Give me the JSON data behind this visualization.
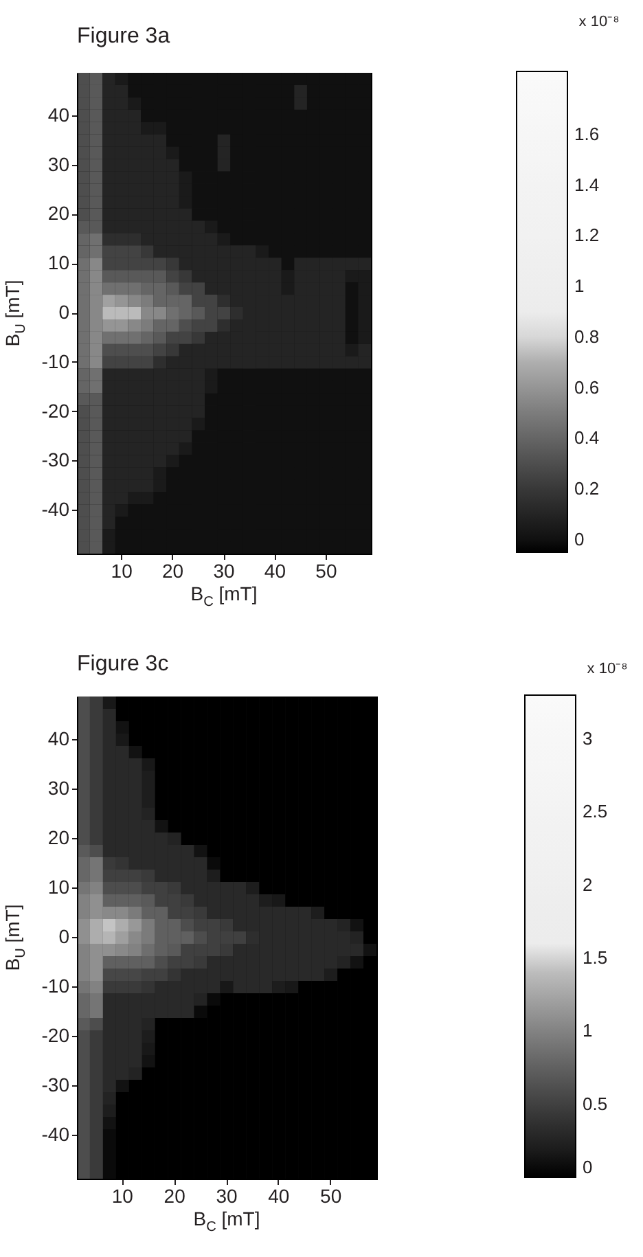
{
  "chart_data": [
    {
      "type": "heatmap",
      "title": "Figure 3a",
      "xlabel": "B$_{C}$ [mT]",
      "ylabel": "B$_{U}$ [mT]",
      "clabel": "x 10⁻⁸",
      "categories": [
        null,
        null,
        null,
        "10",
        null,
        null,
        null,
        "20",
        null,
        null,
        null,
        "30",
        null,
        null,
        null,
        "40",
        null,
        null,
        null,
        "50",
        null,
        null,
        null
      ],
      "y_categories": [
        null,
        null,
        null,
        "40",
        null,
        null,
        null,
        "30",
        null,
        null,
        null,
        "20",
        null,
        null,
        null,
        "10",
        null,
        null,
        null,
        "0",
        null,
        null,
        null,
        "-10",
        null,
        null,
        null,
        "-20",
        null,
        null,
        null,
        "-30",
        null,
        null,
        null,
        "-40",
        null,
        null,
        null
      ],
      "cells": [
        [
          0.3,
          0.35,
          0.1,
          0.05,
          0,
          0,
          0,
          0,
          0,
          0,
          0,
          0,
          0,
          0,
          0,
          0,
          0,
          0,
          0,
          0,
          0,
          0,
          0
        ],
        [
          0.3,
          0.35,
          0.1,
          0.1,
          0,
          0,
          0,
          0,
          0,
          0,
          0,
          0,
          0,
          0,
          0,
          0,
          0,
          0.1,
          0,
          0,
          0,
          0,
          0
        ],
        [
          0.3,
          0.35,
          0.1,
          0.1,
          0.05,
          0,
          0,
          0,
          0,
          0,
          0,
          0,
          0,
          0,
          0,
          0,
          0,
          0.1,
          0,
          0,
          0,
          0,
          0
        ],
        [
          0.3,
          0.35,
          0.1,
          0.1,
          0.1,
          0,
          0,
          0,
          0,
          0,
          0,
          0,
          0,
          0,
          0,
          0,
          0,
          0,
          0,
          0,
          0,
          0,
          0
        ],
        [
          0.3,
          0.35,
          0.1,
          0.1,
          0.1,
          0.05,
          0.05,
          0,
          0,
          0,
          0,
          0,
          0,
          0,
          0,
          0,
          0,
          0,
          0,
          0,
          0,
          0,
          0
        ],
        [
          0.3,
          0.35,
          0.1,
          0.1,
          0.1,
          0.1,
          0.1,
          0,
          0,
          0,
          0,
          0.1,
          0,
          0,
          0,
          0,
          0,
          0,
          0,
          0,
          0,
          0,
          0
        ],
        [
          0.3,
          0.35,
          0.1,
          0.1,
          0.1,
          0.1,
          0.1,
          0.05,
          0,
          0,
          0,
          0.1,
          0,
          0,
          0,
          0,
          0,
          0,
          0,
          0,
          0,
          0,
          0
        ],
        [
          0.3,
          0.35,
          0.1,
          0.1,
          0.1,
          0.1,
          0.1,
          0.1,
          0,
          0,
          0,
          0.1,
          0,
          0,
          0,
          0,
          0,
          0,
          0,
          0,
          0,
          0,
          0
        ],
        [
          0.3,
          0.35,
          0.1,
          0.1,
          0.1,
          0.1,
          0.1,
          0.1,
          0.05,
          0,
          0,
          0,
          0,
          0,
          0,
          0,
          0,
          0,
          0,
          0,
          0,
          0,
          0
        ],
        [
          0.3,
          0.35,
          0.1,
          0.1,
          0.1,
          0.1,
          0.1,
          0.1,
          0.05,
          0,
          0,
          0,
          0,
          0,
          0,
          0,
          0,
          0,
          0,
          0,
          0,
          0,
          0
        ],
        [
          0.3,
          0.35,
          0.1,
          0.1,
          0.1,
          0.1,
          0.1,
          0.1,
          0.05,
          0,
          0,
          0,
          0,
          0,
          0,
          0,
          0,
          0,
          0,
          0,
          0,
          0,
          0
        ],
        [
          0.3,
          0.35,
          0.1,
          0.1,
          0.1,
          0.1,
          0.1,
          0.1,
          0.1,
          0,
          0,
          0,
          0,
          0,
          0,
          0,
          0,
          0,
          0,
          0,
          0,
          0,
          0
        ],
        [
          0.35,
          0.35,
          0.1,
          0.1,
          0.1,
          0.1,
          0.1,
          0.1,
          0.1,
          0.1,
          0.05,
          0,
          0,
          0,
          0,
          0,
          0,
          0,
          0,
          0,
          0,
          0,
          0
        ],
        [
          0.4,
          0.45,
          0.15,
          0.15,
          0.15,
          0.1,
          0.1,
          0.1,
          0.1,
          0.1,
          0.1,
          0.05,
          0,
          0,
          0,
          0,
          0,
          0,
          0,
          0,
          0,
          0,
          0
        ],
        [
          0.4,
          0.45,
          0.25,
          0.25,
          0.25,
          0.2,
          0.1,
          0.1,
          0.1,
          0.1,
          0.1,
          0.1,
          0.1,
          0.1,
          0.05,
          0,
          0,
          0,
          0,
          0,
          0,
          0,
          0
        ],
        [
          0.45,
          0.55,
          0.25,
          0.25,
          0.25,
          0.25,
          0.25,
          0.2,
          0.1,
          0.1,
          0.1,
          0.1,
          0.1,
          0.1,
          0.1,
          0.1,
          0,
          0.1,
          0.1,
          0.1,
          0.1,
          0.1,
          0.1
        ],
        [
          0.45,
          0.55,
          0.35,
          0.35,
          0.35,
          0.35,
          0.35,
          0.25,
          0.2,
          0.1,
          0.1,
          0.1,
          0.1,
          0.1,
          0.1,
          0.1,
          0.05,
          0.1,
          0.1,
          0.1,
          0.1,
          0.05,
          0.05
        ],
        [
          0.45,
          0.55,
          0.45,
          0.45,
          0.45,
          0.4,
          0.4,
          0.35,
          0.25,
          0.25,
          0.1,
          0.1,
          0.1,
          0.1,
          0.1,
          0.1,
          0.05,
          0.1,
          0.1,
          0.1,
          0.1,
          0,
          0.05
        ],
        [
          0.45,
          0.55,
          0.65,
          0.6,
          0.55,
          0.5,
          0.4,
          0.4,
          0.4,
          0.25,
          0.25,
          0.15,
          0.1,
          0.1,
          0.1,
          0.1,
          0.1,
          0.1,
          0.1,
          0.1,
          0.1,
          0,
          0.05
        ],
        [
          0.45,
          0.55,
          0.75,
          0.75,
          0.75,
          0.55,
          0.55,
          0.45,
          0.4,
          0.35,
          0.25,
          0.25,
          0.15,
          0.1,
          0.1,
          0.1,
          0.1,
          0.1,
          0.1,
          0.1,
          0.1,
          0,
          0.05
        ],
        [
          0.45,
          0.55,
          0.6,
          0.6,
          0.55,
          0.5,
          0.4,
          0.4,
          0.3,
          0.25,
          0.25,
          0.15,
          0.1,
          0.1,
          0.1,
          0.1,
          0.1,
          0.1,
          0.1,
          0.1,
          0.1,
          0,
          0.05
        ],
        [
          0.45,
          0.55,
          0.45,
          0.45,
          0.45,
          0.4,
          0.35,
          0.25,
          0.25,
          0.2,
          0.1,
          0.1,
          0.1,
          0.1,
          0.1,
          0.1,
          0.1,
          0.1,
          0.1,
          0.1,
          0.1,
          0,
          0.05
        ],
        [
          0.45,
          0.55,
          0.3,
          0.3,
          0.3,
          0.3,
          0.25,
          0.2,
          0.1,
          0.1,
          0.1,
          0.1,
          0.1,
          0.1,
          0.1,
          0.1,
          0.1,
          0.1,
          0.1,
          0.1,
          0.1,
          0.05,
          0.1
        ],
        [
          0.45,
          0.55,
          0.25,
          0.25,
          0.25,
          0.25,
          0.15,
          0.1,
          0.1,
          0.1,
          0.1,
          0.1,
          0.1,
          0.1,
          0.1,
          0.1,
          0.1,
          0.1,
          0.1,
          0.1,
          0.1,
          0.1,
          0.1
        ],
        [
          0.4,
          0.45,
          0.1,
          0.1,
          0.1,
          0.1,
          0.1,
          0.1,
          0.1,
          0.1,
          0.05,
          0,
          0,
          0,
          0,
          0,
          0,
          0,
          0,
          0,
          0,
          0,
          0
        ],
        [
          0.4,
          0.45,
          0.1,
          0.1,
          0.1,
          0.1,
          0.1,
          0.1,
          0.1,
          0.1,
          0.05,
          0,
          0,
          0,
          0,
          0,
          0,
          0,
          0,
          0,
          0,
          0,
          0
        ],
        [
          0.35,
          0.35,
          0.1,
          0.1,
          0.1,
          0.1,
          0.1,
          0.1,
          0.1,
          0.1,
          0,
          0,
          0,
          0,
          0,
          0,
          0,
          0,
          0,
          0,
          0,
          0,
          0
        ],
        [
          0.3,
          0.35,
          0.1,
          0.1,
          0.1,
          0.1,
          0.1,
          0.1,
          0.1,
          0.1,
          0,
          0,
          0,
          0,
          0,
          0,
          0,
          0,
          0,
          0,
          0,
          0,
          0
        ],
        [
          0.3,
          0.35,
          0.1,
          0.1,
          0.1,
          0.1,
          0.1,
          0.1,
          0.1,
          0.05,
          0,
          0,
          0,
          0,
          0,
          0,
          0,
          0,
          0,
          0,
          0,
          0,
          0
        ],
        [
          0.3,
          0.35,
          0.1,
          0.1,
          0.1,
          0.1,
          0.1,
          0.1,
          0.1,
          0,
          0,
          0,
          0,
          0,
          0,
          0,
          0,
          0,
          0,
          0,
          0,
          0,
          0
        ],
        [
          0.3,
          0.35,
          0.1,
          0.1,
          0.1,
          0.1,
          0.1,
          0.1,
          0.05,
          0,
          0,
          0,
          0,
          0,
          0,
          0,
          0,
          0,
          0,
          0,
          0,
          0,
          0
        ],
        [
          0.3,
          0.35,
          0.1,
          0.1,
          0.1,
          0.1,
          0.1,
          0.05,
          0,
          0,
          0,
          0,
          0,
          0,
          0,
          0,
          0,
          0,
          0,
          0,
          0,
          0,
          0
        ],
        [
          0.3,
          0.35,
          0.1,
          0.1,
          0.1,
          0.1,
          0.05,
          0,
          0,
          0,
          0,
          0,
          0,
          0,
          0,
          0,
          0,
          0,
          0,
          0,
          0,
          0,
          0
        ],
        [
          0.3,
          0.35,
          0.1,
          0.1,
          0.1,
          0.1,
          0.05,
          0,
          0,
          0,
          0,
          0,
          0,
          0,
          0,
          0,
          0,
          0,
          0,
          0,
          0,
          0,
          0
        ],
        [
          0.3,
          0.35,
          0.1,
          0.1,
          0.05,
          0.05,
          0,
          0,
          0,
          0,
          0,
          0,
          0,
          0,
          0,
          0,
          0,
          0,
          0,
          0,
          0,
          0,
          0
        ],
        [
          0.3,
          0.35,
          0.1,
          0.05,
          0,
          0,
          0,
          0,
          0,
          0,
          0,
          0,
          0,
          0,
          0,
          0,
          0,
          0,
          0,
          0,
          0,
          0,
          0
        ],
        [
          0.3,
          0.35,
          0.1,
          0,
          0,
          0,
          0,
          0,
          0,
          0,
          0,
          0,
          0,
          0,
          0,
          0,
          0,
          0,
          0,
          0,
          0,
          0,
          0
        ],
        [
          0.3,
          0.35,
          0.05,
          0,
          0,
          0,
          0,
          0,
          0,
          0,
          0,
          0,
          0,
          0,
          0,
          0,
          0,
          0,
          0,
          0,
          0,
          0,
          0
        ],
        [
          0.3,
          0.35,
          0.05,
          0,
          0,
          0,
          0,
          0,
          0,
          0,
          0,
          0,
          0,
          0,
          0,
          0,
          0,
          0,
          0,
          0,
          0,
          0,
          0
        ]
      ],
      "clim": [
        -0.05,
        1.85
      ],
      "cticks": [
        0,
        0.2,
        0.4,
        0.6,
        0.8,
        1,
        1.2,
        1.4,
        1.6
      ]
    },
    {
      "type": "heatmap",
      "title": "Figure 3c",
      "xlabel": "B$_{C}$ [mT]",
      "ylabel": "B$_{U}$ [mT]",
      "clabel": "x 10⁻⁸",
      "categories": [
        null,
        null,
        null,
        "10",
        null,
        null,
        null,
        "20",
        null,
        null,
        null,
        "30",
        null,
        null,
        null,
        "40",
        null,
        null,
        null,
        "50",
        null,
        null,
        null
      ],
      "y_categories": [
        null,
        null,
        null,
        "40",
        null,
        null,
        null,
        "30",
        null,
        null,
        null,
        "20",
        null,
        null,
        null,
        "10",
        null,
        null,
        null,
        "0",
        null,
        null,
        null,
        "-10",
        null,
        null,
        null,
        "-20",
        null,
        null,
        null,
        "-30",
        null,
        null,
        null,
        "-40",
        null,
        null,
        null
      ],
      "cells": [
        [
          0.6,
          0.45,
          0.15,
          0,
          0,
          0,
          0,
          0,
          0,
          0,
          0,
          0,
          0,
          0,
          0,
          0,
          0,
          0,
          0,
          0,
          0,
          0,
          0
        ],
        [
          0.6,
          0.45,
          0.3,
          0,
          0,
          0,
          0,
          0,
          0,
          0,
          0,
          0,
          0,
          0,
          0,
          0,
          0,
          0,
          0,
          0,
          0,
          0,
          0
        ],
        [
          0.6,
          0.45,
          0.3,
          0.1,
          0,
          0,
          0,
          0,
          0,
          0,
          0,
          0,
          0,
          0,
          0,
          0,
          0,
          0,
          0,
          0,
          0,
          0,
          0
        ],
        [
          0.6,
          0.45,
          0.3,
          0.15,
          0,
          0,
          0,
          0,
          0,
          0,
          0,
          0,
          0,
          0,
          0,
          0,
          0,
          0,
          0,
          0,
          0,
          0,
          0
        ],
        [
          0.6,
          0.45,
          0.3,
          0.3,
          0.1,
          0,
          0,
          0,
          0,
          0,
          0,
          0,
          0,
          0,
          0,
          0,
          0,
          0,
          0,
          0,
          0,
          0,
          0
        ],
        [
          0.6,
          0.45,
          0.3,
          0.3,
          0.3,
          0.15,
          0,
          0,
          0,
          0,
          0,
          0,
          0,
          0,
          0,
          0,
          0,
          0,
          0,
          0,
          0,
          0,
          0
        ],
        [
          0.6,
          0.45,
          0.3,
          0.3,
          0.3,
          0.2,
          0,
          0,
          0,
          0,
          0,
          0,
          0,
          0,
          0,
          0,
          0,
          0,
          0,
          0,
          0,
          0,
          0
        ],
        [
          0.6,
          0.45,
          0.3,
          0.3,
          0.3,
          0.2,
          0,
          0,
          0,
          0,
          0,
          0,
          0,
          0,
          0,
          0,
          0,
          0,
          0,
          0,
          0,
          0,
          0
        ],
        [
          0.6,
          0.45,
          0.3,
          0.3,
          0.3,
          0.2,
          0,
          0,
          0,
          0,
          0,
          0,
          0,
          0,
          0,
          0,
          0,
          0,
          0,
          0,
          0,
          0,
          0
        ],
        [
          0.6,
          0.45,
          0.3,
          0.3,
          0.3,
          0.25,
          0,
          0,
          0,
          0,
          0,
          0,
          0,
          0,
          0,
          0,
          0,
          0,
          0,
          0,
          0,
          0,
          0
        ],
        [
          0.6,
          0.45,
          0.3,
          0.3,
          0.3,
          0.3,
          0.1,
          0,
          0,
          0,
          0,
          0,
          0,
          0,
          0,
          0,
          0,
          0,
          0,
          0,
          0,
          0,
          0
        ],
        [
          0.6,
          0.45,
          0.3,
          0.3,
          0.3,
          0.3,
          0.3,
          0.25,
          0,
          0,
          0,
          0,
          0,
          0,
          0,
          0,
          0,
          0,
          0,
          0,
          0,
          0,
          0
        ],
        [
          0.7,
          0.6,
          0.3,
          0.3,
          0.3,
          0.3,
          0.3,
          0.3,
          0.3,
          0.1,
          0,
          0,
          0,
          0,
          0,
          0,
          0,
          0,
          0,
          0,
          0,
          0,
          0
        ],
        [
          0.8,
          0.9,
          0.45,
          0.4,
          0.3,
          0.3,
          0.3,
          0.3,
          0.3,
          0.3,
          0.05,
          0,
          0,
          0,
          0,
          0,
          0,
          0,
          0,
          0,
          0,
          0,
          0
        ],
        [
          0.8,
          0.9,
          0.5,
          0.5,
          0.5,
          0.45,
          0.3,
          0.3,
          0.3,
          0.3,
          0.2,
          0,
          0,
          0,
          0,
          0,
          0,
          0,
          0,
          0,
          0,
          0,
          0
        ],
        [
          0.9,
          1,
          0.6,
          0.6,
          0.6,
          0.5,
          0.5,
          0.45,
          0.3,
          0.3,
          0.3,
          0.3,
          0.3,
          0.2,
          0,
          0,
          0,
          0,
          0,
          0,
          0,
          0,
          0
        ],
        [
          1,
          1.1,
          0.75,
          0.75,
          0.75,
          0.7,
          0.5,
          0.5,
          0.45,
          0.3,
          0.3,
          0.3,
          0.3,
          0.3,
          0.2,
          0.15,
          0,
          0,
          0,
          0,
          0,
          0,
          0
        ],
        [
          1,
          1.1,
          1.05,
          1.05,
          0.95,
          0.75,
          0.75,
          0.5,
          0.5,
          0.45,
          0.3,
          0.3,
          0.3,
          0.3,
          0.3,
          0.3,
          0.3,
          0.3,
          0.2,
          0,
          0,
          0,
          0
        ],
        [
          1.1,
          1.3,
          1.45,
          1.3,
          1.15,
          0.95,
          0.75,
          0.75,
          0.6,
          0.5,
          0.5,
          0.45,
          0.3,
          0.3,
          0.3,
          0.3,
          0.3,
          0.3,
          0.3,
          0.3,
          0.25,
          0.1,
          0
        ],
        [
          1.1,
          1.3,
          1.35,
          1.2,
          1.05,
          0.95,
          0.75,
          0.75,
          0.75,
          0.6,
          0.5,
          0.5,
          0.5,
          0.35,
          0.3,
          0.3,
          0.3,
          0.3,
          0.3,
          0.3,
          0.3,
          0.25,
          0
        ],
        [
          1,
          1.1,
          1.1,
          1.05,
          1,
          0.85,
          0.75,
          0.7,
          0.5,
          0.5,
          0.5,
          0.45,
          0.3,
          0.3,
          0.3,
          0.3,
          0.3,
          0.3,
          0.3,
          0.3,
          0.3,
          0.3,
          0.1
        ],
        [
          1,
          1.1,
          0.75,
          0.75,
          0.75,
          0.75,
          0.6,
          0.5,
          0.5,
          0.45,
          0.3,
          0.3,
          0.3,
          0.3,
          0.3,
          0.3,
          0.3,
          0.3,
          0.3,
          0.3,
          0.25,
          0.1,
          0
        ],
        [
          1,
          1.1,
          0.55,
          0.55,
          0.55,
          0.5,
          0.5,
          0.4,
          0.3,
          0.3,
          0.3,
          0.3,
          0.3,
          0.3,
          0.3,
          0.3,
          0.3,
          0.3,
          0.3,
          0.2,
          0,
          0,
          0
        ],
        [
          0.9,
          1,
          0.45,
          0.45,
          0.45,
          0.4,
          0.3,
          0.3,
          0.3,
          0.3,
          0.3,
          0.15,
          0.3,
          0.3,
          0.3,
          0.2,
          0.15,
          0,
          0,
          0,
          0,
          0,
          0
        ],
        [
          0.8,
          0.9,
          0.3,
          0.3,
          0.3,
          0.3,
          0.3,
          0.3,
          0.3,
          0.25,
          0.05,
          0,
          0,
          0,
          0,
          0,
          0,
          0,
          0,
          0,
          0,
          0,
          0
        ],
        [
          0.8,
          0.9,
          0.3,
          0.3,
          0.3,
          0.3,
          0.3,
          0.3,
          0.3,
          0.05,
          0,
          0,
          0,
          0,
          0,
          0,
          0,
          0,
          0,
          0,
          0,
          0,
          0
        ],
        [
          0.7,
          0.6,
          0.3,
          0.3,
          0.3,
          0.25,
          0,
          0,
          0,
          0,
          0,
          0,
          0,
          0,
          0,
          0,
          0,
          0,
          0,
          0,
          0,
          0,
          0
        ],
        [
          0.6,
          0.45,
          0.3,
          0.3,
          0.3,
          0.2,
          0,
          0,
          0,
          0,
          0,
          0,
          0,
          0,
          0,
          0,
          0,
          0,
          0,
          0,
          0,
          0,
          0
        ],
        [
          0.6,
          0.45,
          0.3,
          0.3,
          0.3,
          0.15,
          0,
          0,
          0,
          0,
          0,
          0,
          0,
          0,
          0,
          0,
          0,
          0,
          0,
          0,
          0,
          0,
          0
        ],
        [
          0.6,
          0.45,
          0.3,
          0.3,
          0.3,
          0.1,
          0,
          0,
          0,
          0,
          0,
          0,
          0,
          0,
          0,
          0,
          0,
          0,
          0,
          0,
          0,
          0,
          0
        ],
        [
          0.6,
          0.45,
          0.3,
          0.3,
          0.25,
          0,
          0,
          0,
          0,
          0,
          0,
          0,
          0,
          0,
          0,
          0,
          0,
          0,
          0,
          0,
          0,
          0,
          0
        ],
        [
          0.6,
          0.45,
          0.3,
          0.1,
          0,
          0,
          0,
          0,
          0,
          0,
          0,
          0,
          0,
          0,
          0,
          0,
          0,
          0,
          0,
          0,
          0,
          0,
          0
        ],
        [
          0.6,
          0.45,
          0.25,
          0,
          0,
          0,
          0,
          0,
          0,
          0,
          0,
          0,
          0,
          0,
          0,
          0,
          0,
          0,
          0,
          0,
          0,
          0,
          0
        ],
        [
          0.6,
          0.45,
          0.2,
          0,
          0,
          0,
          0,
          0,
          0,
          0,
          0,
          0,
          0,
          0,
          0,
          0,
          0,
          0,
          0,
          0,
          0,
          0,
          0
        ],
        [
          0.6,
          0.45,
          0.1,
          0,
          0,
          0,
          0,
          0,
          0,
          0,
          0,
          0,
          0,
          0,
          0,
          0,
          0,
          0,
          0,
          0,
          0,
          0,
          0
        ],
        [
          0.6,
          0.45,
          0.05,
          0,
          0,
          0,
          0,
          0,
          0,
          0,
          0,
          0,
          0,
          0,
          0,
          0,
          0,
          0,
          0,
          0,
          0,
          0,
          0
        ],
        [
          0.6,
          0.45,
          0.05,
          0,
          0,
          0,
          0,
          0,
          0,
          0,
          0,
          0,
          0,
          0,
          0,
          0,
          0,
          0,
          0,
          0,
          0,
          0,
          0
        ],
        [
          0.6,
          0.45,
          0.05,
          0,
          0,
          0,
          0,
          0,
          0,
          0,
          0,
          0,
          0,
          0,
          0,
          0,
          0,
          0,
          0,
          0,
          0,
          0,
          0
        ],
        [
          0.6,
          0.45,
          0.05,
          0,
          0,
          0,
          0,
          0,
          0,
          0,
          0,
          0,
          0,
          0,
          0,
          0,
          0,
          0,
          0,
          0,
          0,
          0,
          0
        ]
      ],
      "clim": [
        0,
        3.3
      ],
      "cticks": [
        0,
        0.5,
        1,
        1.5,
        2,
        2.5,
        3
      ]
    }
  ]
}
